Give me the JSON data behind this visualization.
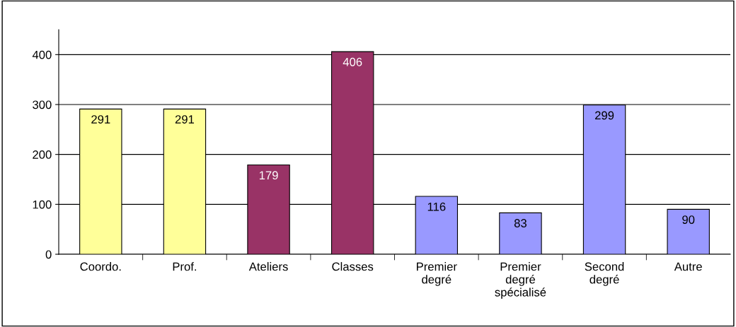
{
  "chart_data": {
    "type": "bar",
    "categories": [
      "Coordo.",
      "Prof.",
      "Ateliers",
      "Classes",
      "Premier\ndegré",
      "Premier\ndegré\nspécialisé",
      "Second\ndegré",
      "Autre"
    ],
    "values": [
      291,
      291,
      179,
      406,
      116,
      83,
      299,
      90
    ],
    "colors": [
      "#ffff99",
      "#ffff99",
      "#993366",
      "#993366",
      "#9999ff",
      "#9999ff",
      "#9999ff",
      "#9999ff"
    ],
    "ylim": [
      0,
      450
    ],
    "yticks": [
      0,
      100,
      200,
      300,
      400
    ],
    "grid": "y",
    "data_labels": true
  }
}
